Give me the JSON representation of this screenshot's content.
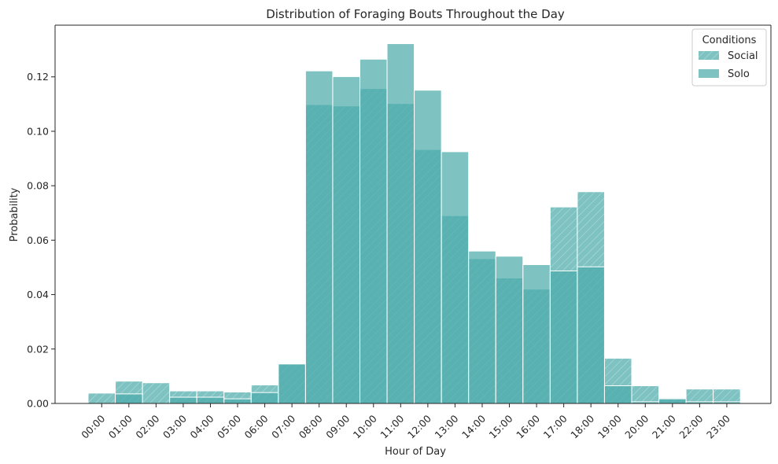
{
  "chart_data": {
    "type": "bar",
    "title": "Distribution of Foraging Bouts Throughout the Day",
    "xlabel": "Hour of Day",
    "ylabel": "Probability",
    "ylim": [
      0,
      0.139
    ],
    "yticks": [
      "0.00",
      "0.02",
      "0.04",
      "0.06",
      "0.08",
      "0.10",
      "0.12"
    ],
    "ytick_values": [
      0,
      0.02,
      0.04,
      0.06,
      0.08,
      0.1,
      0.12
    ],
    "categories": [
      "00:00",
      "01:00",
      "02:00",
      "03:00",
      "04:00",
      "05:00",
      "06:00",
      "07:00",
      "08:00",
      "09:00",
      "10:00",
      "11:00",
      "12:00",
      "13:00",
      "14:00",
      "15:00",
      "16:00",
      "17:00",
      "18:00",
      "19:00",
      "20:00",
      "21:00",
      "22:00",
      "23:00"
    ],
    "grid": false,
    "legend": {
      "title": "Conditions",
      "placement": "top-right"
    },
    "series": [
      {
        "name": "Social",
        "hatch": "diagonal",
        "values": [
          0.0038,
          0.0082,
          0.0076,
          0.0046,
          0.0046,
          0.0042,
          0.0068,
          0.0145,
          0.1098,
          0.1093,
          0.1157,
          0.1102,
          0.0933,
          0.069,
          0.0532,
          0.0461,
          0.042,
          0.0722,
          0.0778,
          0.0166,
          0.0065,
          0.002,
          0.0053,
          0.0053
        ]
      },
      {
        "name": "Solo",
        "hatch": "none",
        "values": [
          0.0,
          0.0035,
          0.0,
          0.0023,
          0.0023,
          0.0017,
          0.004,
          0.0145,
          0.1222,
          0.1201,
          0.1265,
          0.1322,
          0.1151,
          0.0925,
          0.056,
          0.0541,
          0.051,
          0.0487,
          0.0502,
          0.0065,
          0.0006,
          0.0017,
          0.0006,
          0.0006
        ]
      }
    ],
    "colors": {
      "bar": "#4cabab",
      "edge": "#ffffff",
      "axis": "#262626"
    }
  }
}
